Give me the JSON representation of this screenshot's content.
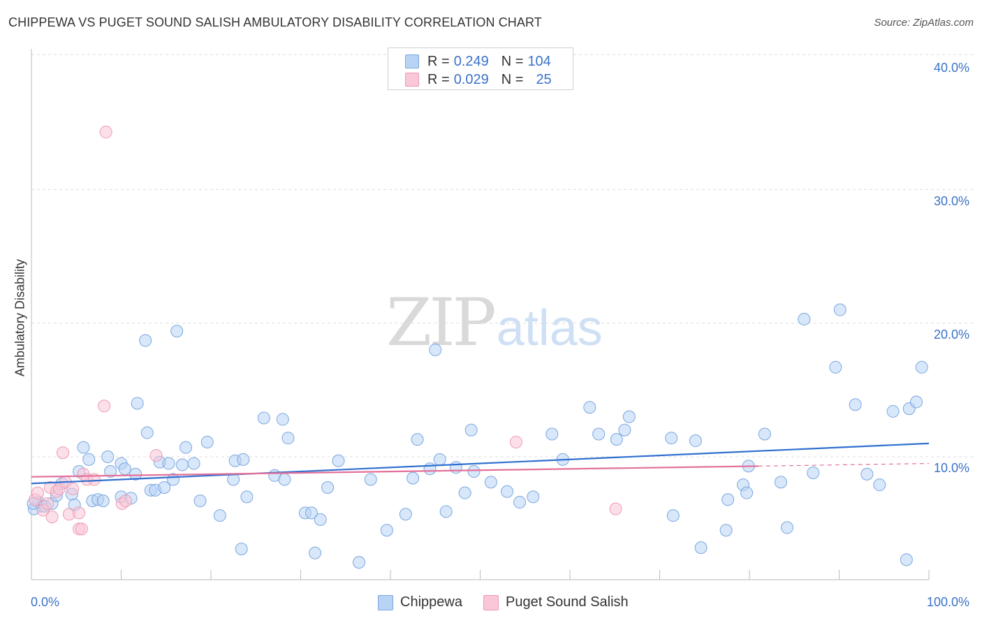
{
  "title": "CHIPPEWA VS PUGET SOUND SALISH AMBULATORY DISABILITY CORRELATION CHART",
  "source": "Source: ZipAtlas.com",
  "watermark": {
    "zip": "ZIP",
    "atlas": "atlas"
  },
  "legend": {
    "rows": [
      {
        "r_label": "R =",
        "r_value": "0.249",
        "n_label": "N =",
        "n_value": "104",
        "color": "#6fa3e8"
      },
      {
        "r_label": "R =",
        "r_value": "0.029",
        "n_label": "N =",
        "n_value": "25",
        "color": "#f08cab"
      }
    ]
  },
  "bottom_legend": [
    "Chippewa",
    "Puget Sound Salish"
  ],
  "colors": {
    "chippewa_fill": "#b8d3f4",
    "chippewa_stroke": "#7aa7e0",
    "chippewa_line": "#2f6fcf",
    "salish_fill": "#f9c7d7",
    "salish_stroke": "#ee9ab4",
    "salish_line": "#e2709a",
    "tick_label": "#3a72c8",
    "grid": "#dddddd"
  },
  "chart_data": {
    "type": "scatter",
    "title": "CHIPPEWA VS PUGET SOUND SALISH AMBULATORY DISABILITY CORRELATION CHART",
    "xlabel": "",
    "ylabel": "Ambulatory Disability",
    "xlim": [
      0,
      100
    ],
    "ylim": [
      0,
      41.5
    ],
    "x_tick_labels": [
      "0.0%",
      "100.0%"
    ],
    "y_ticks": [
      10,
      20,
      30,
      40
    ],
    "y_tick_labels": [
      "10.0%",
      "20.0%",
      "30.0%",
      "40.0%"
    ],
    "grid": "horizontal dashed",
    "legend_position": "top-center",
    "series": [
      {
        "name": "Chippewa",
        "r": 0.249,
        "n": 104,
        "trend": {
          "x": [
            0,
            100
          ],
          "y": [
            8.0,
            11.0
          ]
        },
        "points": [
          [
            0.3,
            6.1
          ],
          [
            0.8,
            6.6
          ],
          [
            1.2,
            6.3
          ],
          [
            1.5,
            6.3
          ],
          [
            2.3,
            6.5
          ],
          [
            2.8,
            7.1
          ],
          [
            3.4,
            8.0
          ],
          [
            4.5,
            7.2
          ],
          [
            4.8,
            6.4
          ],
          [
            5.3,
            8.9
          ],
          [
            5.8,
            10.7
          ],
          [
            6.4,
            9.8
          ],
          [
            6.8,
            6.7
          ],
          [
            7.4,
            6.8
          ],
          [
            8.0,
            6.7
          ],
          [
            8.5,
            10.0
          ],
          [
            8.8,
            8.9
          ],
          [
            10.0,
            7.0
          ],
          [
            10.0,
            9.5
          ],
          [
            10.4,
            9.1
          ],
          [
            11.1,
            6.9
          ],
          [
            11.6,
            8.7
          ],
          [
            11.8,
            14.0
          ],
          [
            12.7,
            18.7
          ],
          [
            12.9,
            11.8
          ],
          [
            13.3,
            7.5
          ],
          [
            13.8,
            7.5
          ],
          [
            14.3,
            9.6
          ],
          [
            14.8,
            7.7
          ],
          [
            15.3,
            9.5
          ],
          [
            15.8,
            8.3
          ],
          [
            16.2,
            19.4
          ],
          [
            16.8,
            9.4
          ],
          [
            17.2,
            10.7
          ],
          [
            18.1,
            9.5
          ],
          [
            18.8,
            6.7
          ],
          [
            19.6,
            11.1
          ],
          [
            21.0,
            5.6
          ],
          [
            22.5,
            8.3
          ],
          [
            22.7,
            9.7
          ],
          [
            23.4,
            3.1
          ],
          [
            23.6,
            9.8
          ],
          [
            24.0,
            7.0
          ],
          [
            25.9,
            12.9
          ],
          [
            27.1,
            8.6
          ],
          [
            28.0,
            12.8
          ],
          [
            28.2,
            8.3
          ],
          [
            28.6,
            11.4
          ],
          [
            30.5,
            5.8
          ],
          [
            31.2,
            5.8
          ],
          [
            31.6,
            2.8
          ],
          [
            32.2,
            5.3
          ],
          [
            33.0,
            7.7
          ],
          [
            34.2,
            9.7
          ],
          [
            36.5,
            2.1
          ],
          [
            37.8,
            8.3
          ],
          [
            39.6,
            4.5
          ],
          [
            41.7,
            5.7
          ],
          [
            42.5,
            8.4
          ],
          [
            43.0,
            11.3
          ],
          [
            44.4,
            9.1
          ],
          [
            45.0,
            18.0
          ],
          [
            45.5,
            9.8
          ],
          [
            46.2,
            5.9
          ],
          [
            47.3,
            9.2
          ],
          [
            48.3,
            7.3
          ],
          [
            49.0,
            12.0
          ],
          [
            49.3,
            8.9
          ],
          [
            51.2,
            8.1
          ],
          [
            53.0,
            7.4
          ],
          [
            54.4,
            6.6
          ],
          [
            55.9,
            7.0
          ],
          [
            58.0,
            11.7
          ],
          [
            59.2,
            9.8
          ],
          [
            62.2,
            13.7
          ],
          [
            63.2,
            11.7
          ],
          [
            65.2,
            11.3
          ],
          [
            66.1,
            12.0
          ],
          [
            66.6,
            13.0
          ],
          [
            71.3,
            11.4
          ],
          [
            71.5,
            5.6
          ],
          [
            74.0,
            11.2
          ],
          [
            74.6,
            3.2
          ],
          [
            77.4,
            4.5
          ],
          [
            77.6,
            6.8
          ],
          [
            79.3,
            7.9
          ],
          [
            79.7,
            7.3
          ],
          [
            79.9,
            9.3
          ],
          [
            81.7,
            11.7
          ],
          [
            83.5,
            8.1
          ],
          [
            84.2,
            4.7
          ],
          [
            86.1,
            20.3
          ],
          [
            87.1,
            8.8
          ],
          [
            89.6,
            16.7
          ],
          [
            90.1,
            21.0
          ],
          [
            91.8,
            13.9
          ],
          [
            93.1,
            8.7
          ],
          [
            94.5,
            7.9
          ],
          [
            96.0,
            13.4
          ],
          [
            97.5,
            2.3
          ],
          [
            97.8,
            13.6
          ],
          [
            98.6,
            14.1
          ],
          [
            99.2,
            16.7
          ],
          [
            0.2,
            6.5
          ]
        ]
      },
      {
        "name": "Puget Sound Salish",
        "r": 0.029,
        "n": 25,
        "trend": {
          "x": [
            0,
            81
          ],
          "y": [
            8.5,
            9.3
          ]
        },
        "trend_dashed": {
          "x": [
            81,
            100
          ],
          "y": [
            9.3,
            9.5
          ]
        },
        "points": [
          [
            0.4,
            6.8
          ],
          [
            0.7,
            7.3
          ],
          [
            1.3,
            6.0
          ],
          [
            1.8,
            6.5
          ],
          [
            2.1,
            7.7
          ],
          [
            2.3,
            5.5
          ],
          [
            2.8,
            7.4
          ],
          [
            3.1,
            7.6
          ],
          [
            3.5,
            10.3
          ],
          [
            3.8,
            8.1
          ],
          [
            4.2,
            5.7
          ],
          [
            4.6,
            7.6
          ],
          [
            5.3,
            5.8
          ],
          [
            5.3,
            4.6
          ],
          [
            5.6,
            4.6
          ],
          [
            5.8,
            8.7
          ],
          [
            6.2,
            8.3
          ],
          [
            7.0,
            8.3
          ],
          [
            8.3,
            34.3
          ],
          [
            8.1,
            13.8
          ],
          [
            10.1,
            6.5
          ],
          [
            10.5,
            6.7
          ],
          [
            13.9,
            10.1
          ],
          [
            54.0,
            11.1
          ],
          [
            65.1,
            6.1
          ]
        ]
      }
    ]
  }
}
